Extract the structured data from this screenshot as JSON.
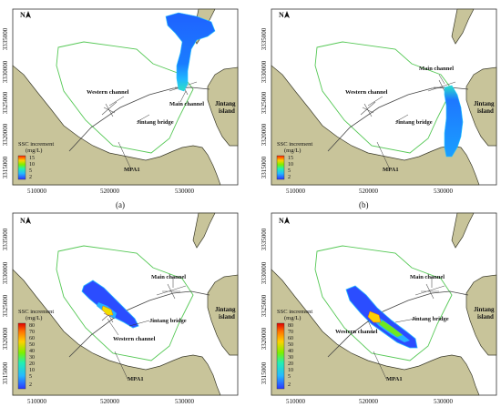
{
  "panels": [
    {
      "id": "a",
      "panel_label": "(a)",
      "north": "N",
      "y_ticks": [
        "3335000",
        "3330000",
        "3325000",
        "3320000",
        "3315000"
      ],
      "x_ticks": [
        "510000",
        "520000",
        "530000"
      ],
      "labels": {
        "western_channel": "Western channel",
        "main_channel": "Main channel",
        "jintang_bridge": "Jintang bridge",
        "jintang_island_1": "Jintang",
        "jintang_island_2": "island",
        "mpa": "MPA1"
      },
      "legend": {
        "title_1": "SSC increment",
        "title_2": "(mg/L)",
        "levels": [
          "15",
          "10",
          "5",
          "2"
        ]
      },
      "plume": "main-north"
    },
    {
      "id": "b",
      "panel_label": "(b)",
      "north": "N",
      "y_ticks": [
        "3335000",
        "3330000",
        "3325000",
        "3320000",
        "3315000"
      ],
      "x_ticks": [
        "510000",
        "520000",
        "530000"
      ],
      "labels": {
        "western_channel": "Western channel",
        "main_channel": "Main channel",
        "jintang_bridge": "Jintang bridge",
        "jintang_island_1": "Jintang",
        "jintang_island_2": "island",
        "mpa": "MPA1"
      },
      "legend": {
        "title_1": "SSC increment",
        "title_2": "(mg/L)",
        "levels": [
          "15",
          "10",
          "5",
          "2"
        ]
      },
      "plume": "main-south"
    },
    {
      "id": "c",
      "panel_label": "",
      "north": "N",
      "y_ticks": [
        "3335000",
        "3330000",
        "3325000",
        "3320000",
        "3315000"
      ],
      "x_ticks": [
        "510000",
        "520000",
        "530000"
      ],
      "labels": {
        "western_channel": "Western channel",
        "main_channel": "Main channel",
        "jintang_bridge": "Jintang bridge",
        "jintang_island_1": "Jintang",
        "jintang_island_2": "island",
        "mpa": "MPA1"
      },
      "legend": {
        "title_1": "SSC increment",
        "title_2": "(mg/L)",
        "levels": [
          "80",
          "70",
          "60",
          "50",
          "40",
          "30",
          "20",
          "10",
          "5",
          "2"
        ]
      },
      "plume": "western-northwest"
    },
    {
      "id": "d",
      "panel_label": "",
      "north": "N",
      "y_ticks": [
        "3335000",
        "3330000",
        "3325000",
        "3320000",
        "3315000"
      ],
      "x_ticks": [
        "510000",
        "520000",
        "530000"
      ],
      "labels": {
        "western_channel": "Western channel",
        "main_channel": "Main channel",
        "jintang_bridge": "Jintang bridge",
        "jintang_island_1": "Jintang",
        "jintang_island_2": "island",
        "mpa": "MPA1"
      },
      "legend": {
        "title_1": "SSC increment",
        "title_2": "(mg/L)",
        "levels": [
          "80",
          "70",
          "60",
          "50",
          "40",
          "30",
          "20",
          "10",
          "5",
          "2"
        ]
      },
      "plume": "western-southeast"
    }
  ],
  "colors": {
    "land": "#c8c49a",
    "coast": "#3a3a2a",
    "mpa_boundary": "#55c855",
    "bridge": "#444444",
    "plume_low": "#1f4fff",
    "plume_mid": "#22aaff",
    "plume_high": "#ff3300"
  }
}
